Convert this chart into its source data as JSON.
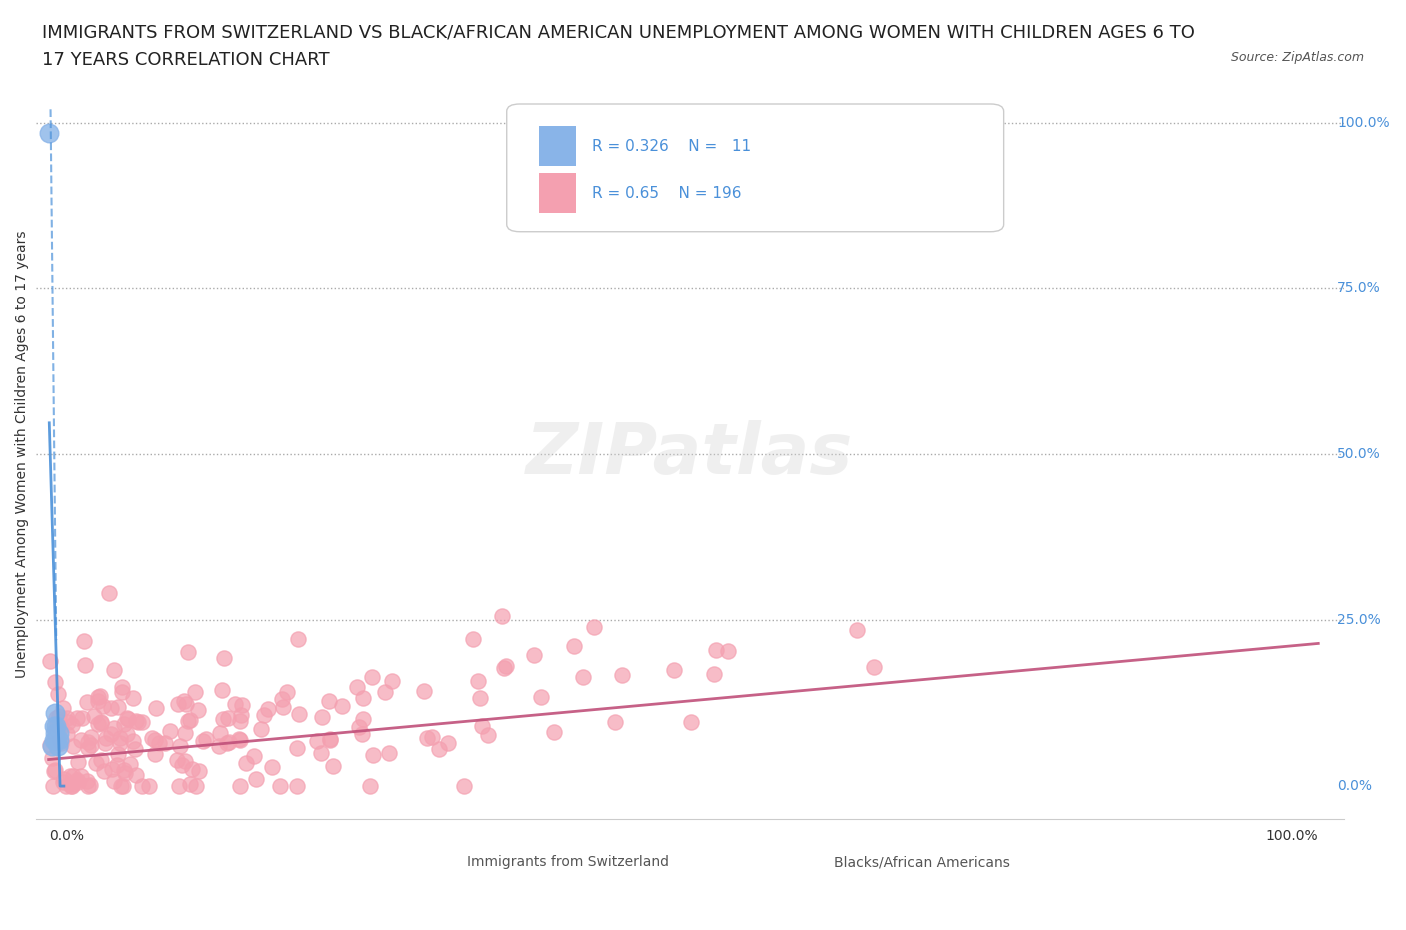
{
  "title_line1": "IMMIGRANTS FROM SWITZERLAND VS BLACK/AFRICAN AMERICAN UNEMPLOYMENT AMONG WOMEN WITH CHILDREN AGES 6 TO",
  "title_line2": "17 YEARS CORRELATION CHART",
  "source": "Source: ZipAtlas.com",
  "ylabel": "Unemployment Among Women with Children Ages 6 to 17 years",
  "r_swiss": 0.326,
  "n_swiss": 11,
  "r_black": 0.65,
  "n_black": 196,
  "color_swiss": "#89b4e8",
  "color_black": "#f4a0b0",
  "trendline_swiss": "#4a90d9",
  "trendline_black": "#c0507a",
  "background_color": "#ffffff",
  "watermark": "ZIPatlas",
  "figsize": [
    14.06,
    9.3
  ],
  "dpi": 100,
  "title_fontsize": 13,
  "axis_label_fontsize": 10,
  "tick_fontsize": 10,
  "legend_fontsize": 11
}
